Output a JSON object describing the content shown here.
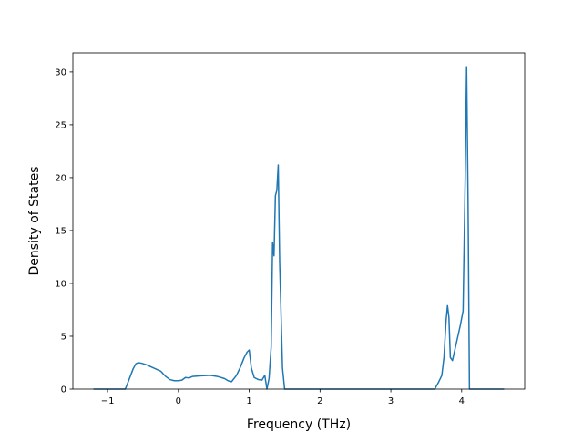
{
  "chart_data": {
    "type": "line",
    "title": "",
    "xlabel": "Frequency (THz)",
    "ylabel": "Density of States",
    "xlim": [
      -1.49,
      4.89
    ],
    "ylim": [
      0,
      31.8
    ],
    "xticks": [
      -1,
      0,
      1,
      2,
      3,
      4
    ],
    "xtick_labels": [
      "−1",
      "0",
      "1",
      "2",
      "3",
      "4"
    ],
    "yticks": [
      0,
      5,
      10,
      15,
      20,
      25,
      30
    ],
    "ytick_labels": [
      "0",
      "5",
      "10",
      "15",
      "20",
      "25",
      "30"
    ],
    "grid": false,
    "legend": false,
    "series": [
      {
        "color": "#1f77b4",
        "x": [
          -1.2,
          -0.75,
          -0.72,
          -0.68,
          -0.64,
          -0.6,
          -0.57,
          -0.52,
          -0.45,
          -0.35,
          -0.25,
          -0.18,
          -0.12,
          -0.06,
          0.0,
          0.05,
          0.1,
          0.15,
          0.2,
          0.3,
          0.45,
          0.55,
          0.65,
          0.7,
          0.75,
          0.82,
          0.87,
          0.93,
          0.97,
          1.0,
          1.03,
          1.07,
          1.13,
          1.18,
          1.22,
          1.25,
          1.28,
          1.31,
          1.33,
          1.35,
          1.37,
          1.39,
          1.41,
          1.43,
          1.45,
          1.47,
          1.5,
          1.53,
          1.56,
          1.6,
          1.65,
          2.0,
          3.0,
          3.5,
          3.62,
          3.67,
          3.72,
          3.75,
          3.78,
          3.8,
          3.82,
          3.84,
          3.87,
          3.92,
          3.98,
          4.02,
          4.05,
          4.07,
          4.09,
          4.11,
          4.6
        ],
        "y": [
          0,
          0,
          0.5,
          1.2,
          1.9,
          2.4,
          2.5,
          2.45,
          2.3,
          2.0,
          1.7,
          1.2,
          0.9,
          0.8,
          0.8,
          0.85,
          1.1,
          1.05,
          1.2,
          1.25,
          1.3,
          1.2,
          1.0,
          0.8,
          0.7,
          1.3,
          2.0,
          3.0,
          3.5,
          3.7,
          2.0,
          1.1,
          0.9,
          0.85,
          1.3,
          0.0,
          1.0,
          4.0,
          13.9,
          12.6,
          18.3,
          18.8,
          21.2,
          12.0,
          7.0,
          2.0,
          0,
          0,
          0,
          0,
          0,
          0,
          0,
          0,
          0,
          0.6,
          1.3,
          3.0,
          6.5,
          7.9,
          6.8,
          3.0,
          2.7,
          4.2,
          6.0,
          7.4,
          20.0,
          30.5,
          18.0,
          0,
          0
        ]
      }
    ]
  }
}
